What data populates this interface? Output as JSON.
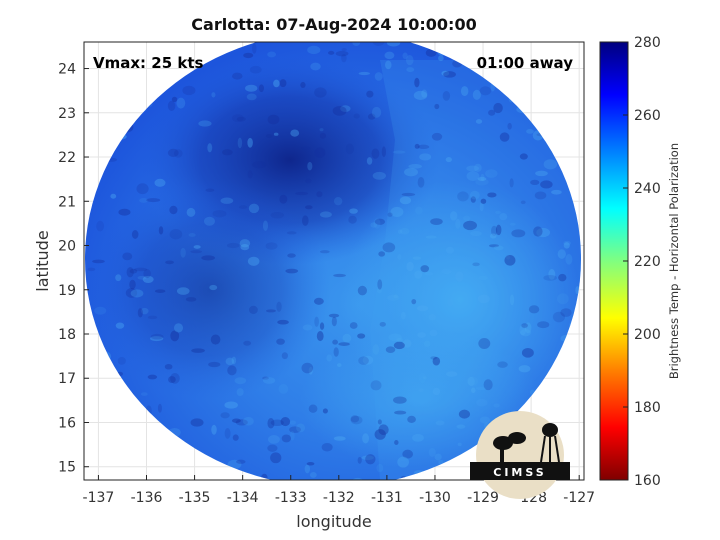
{
  "title": "Carlotta: 07-Aug-2024 10:00:00",
  "vmax_text": "Vmax: 25 kts",
  "time_away_text": "01:00 away",
  "xlabel": "longitude",
  "ylabel": "latitude",
  "colorbar": {
    "label": "Brightness Temp - Horizontal Polarization",
    "ticks": [
      "280",
      "260",
      "240",
      "220",
      "200",
      "180",
      "160"
    ],
    "range": [
      160,
      280
    ]
  },
  "x_ticks": [
    "-137",
    "-136",
    "-135",
    "-134",
    "-133",
    "-132",
    "-131",
    "-130",
    "-129",
    "-128",
    "-127"
  ],
  "y_ticks": [
    "24",
    "23",
    "22",
    "21",
    "20",
    "19",
    "18",
    "17",
    "16",
    "15"
  ],
  "logo_text": "CIMSS",
  "map_extent": {
    "lon": [
      -137.3,
      -126.9
    ],
    "lat": [
      14.7,
      24.6
    ]
  },
  "colors": {
    "background_blue": "#1f5ee0",
    "dark_blue": "#122c9a",
    "light_blue": "#3fa0f0"
  }
}
